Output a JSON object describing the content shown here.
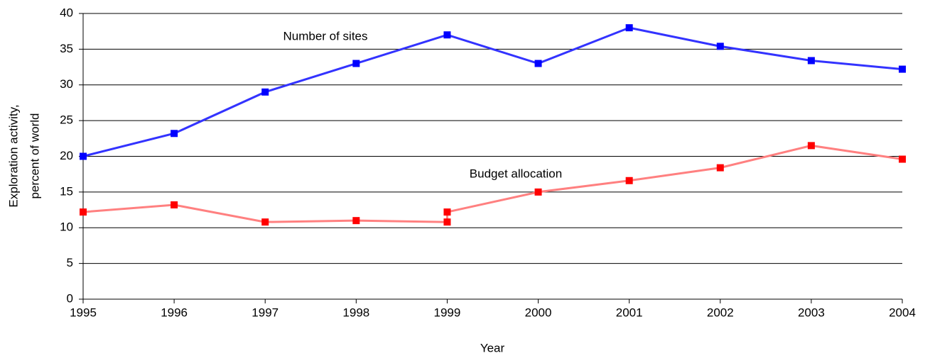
{
  "chart_data": {
    "type": "line",
    "ylabel": [
      "Exploration activity,",
      "percent of world"
    ],
    "xlabel": "Year",
    "xlim": [
      1995,
      2004
    ],
    "xticks": [
      1995,
      1996,
      1997,
      1998,
      1999,
      2000,
      2001,
      2002,
      2003,
      2004
    ],
    "ylim": [
      0,
      40
    ],
    "yticks": [
      0,
      5,
      10,
      15,
      20,
      25,
      30,
      35,
      40
    ],
    "grid": true,
    "series": [
      {
        "name": "Number of sites",
        "color": "#3333ff",
        "marker_color": "#0000ff",
        "x": [
          1995,
          1996,
          1997,
          1998,
          1999,
          2000,
          2001,
          2002,
          2003,
          2004
        ],
        "values": [
          20,
          23.2,
          29,
          33,
          37,
          33,
          38,
          35.4,
          33.4,
          32.2
        ]
      },
      {
        "name": "Budget allocation",
        "color": "#ff8080",
        "marker_color": "#ff0000",
        "x": [
          1995,
          1996,
          1997,
          1998,
          1999,
          1999,
          2000,
          2001,
          2002,
          2003,
          2004
        ],
        "values": [
          12.2,
          13.2,
          10.8,
          11,
          10.8,
          12.2,
          15,
          16.6,
          18.4,
          21.5,
          19.6
        ]
      }
    ]
  }
}
